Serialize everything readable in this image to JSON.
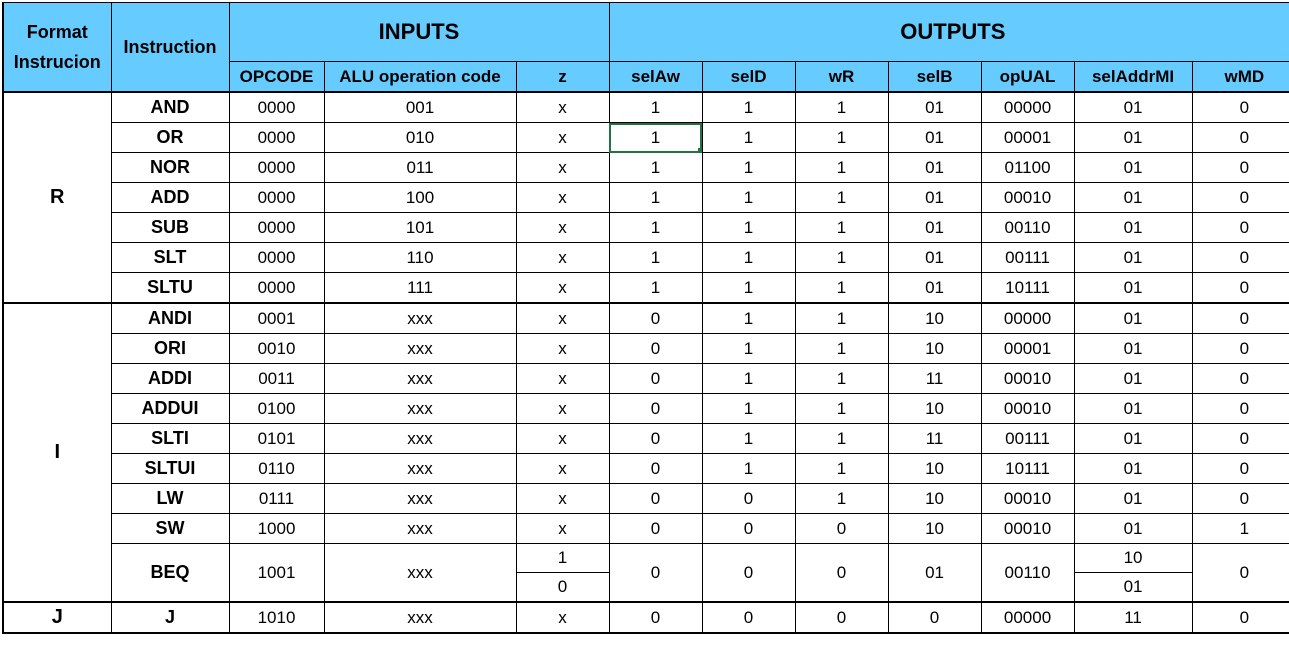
{
  "header": {
    "format_label_line1": "Format",
    "format_label_line2": "Instrucion",
    "instruction_label": "Instruction",
    "inputs_label": "INPUTS",
    "outputs_label": "OUTPUTS",
    "columns": [
      "OPCODE",
      "ALU operation code",
      "z",
      "selAw",
      "selD",
      "wR",
      "selB",
      "opUAL",
      "selAddrMI",
      "wMD"
    ]
  },
  "groups": [
    {
      "format": "R",
      "rows": [
        {
          "instr": "AND",
          "opcode": "0000",
          "alu": "001",
          "z": "x",
          "selAw": "1",
          "selD": "1",
          "wR": "1",
          "selB": "01",
          "opUAL": "00000",
          "selAddrMI": "01",
          "wMD": "0"
        },
        {
          "instr": "OR",
          "opcode": "0000",
          "alu": "010",
          "z": "x",
          "selAw": "1",
          "selD": "1",
          "wR": "1",
          "selB": "01",
          "opUAL": "00001",
          "selAddrMI": "01",
          "wMD": "0"
        },
        {
          "instr": "NOR",
          "opcode": "0000",
          "alu": "011",
          "z": "x",
          "selAw": "1",
          "selD": "1",
          "wR": "1",
          "selB": "01",
          "opUAL": "01100",
          "selAddrMI": "01",
          "wMD": "0"
        },
        {
          "instr": "ADD",
          "opcode": "0000",
          "alu": "100",
          "z": "x",
          "selAw": "1",
          "selD": "1",
          "wR": "1",
          "selB": "01",
          "opUAL": "00010",
          "selAddrMI": "01",
          "wMD": "0"
        },
        {
          "instr": "SUB",
          "opcode": "0000",
          "alu": "101",
          "z": "x",
          "selAw": "1",
          "selD": "1",
          "wR": "1",
          "selB": "01",
          "opUAL": "00110",
          "selAddrMI": "01",
          "wMD": "0"
        },
        {
          "instr": "SLT",
          "opcode": "0000",
          "alu": "110",
          "z": "x",
          "selAw": "1",
          "selD": "1",
          "wR": "1",
          "selB": "01",
          "opUAL": "00111",
          "selAddrMI": "01",
          "wMD": "0"
        },
        {
          "instr": "SLTU",
          "opcode": "0000",
          "alu": "111",
          "z": "x",
          "selAw": "1",
          "selD": "1",
          "wR": "1",
          "selB": "01",
          "opUAL": "10111",
          "selAddrMI": "01",
          "wMD": "0"
        }
      ]
    },
    {
      "format": "I",
      "rows": [
        {
          "instr": "ANDI",
          "opcode": "0001",
          "alu": "xxx",
          "z": "x",
          "selAw": "0",
          "selD": "1",
          "wR": "1",
          "selB": "10",
          "opUAL": "00000",
          "selAddrMI": "01",
          "wMD": "0"
        },
        {
          "instr": "ORI",
          "opcode": "0010",
          "alu": "xxx",
          "z": "x",
          "selAw": "0",
          "selD": "1",
          "wR": "1",
          "selB": "10",
          "opUAL": "00001",
          "selAddrMI": "01",
          "wMD": "0"
        },
        {
          "instr": "ADDI",
          "opcode": "0011",
          "alu": "xxx",
          "z": "x",
          "selAw": "0",
          "selD": "1",
          "wR": "1",
          "selB": "11",
          "opUAL": "00010",
          "selAddrMI": "01",
          "wMD": "0"
        },
        {
          "instr": "ADDUI",
          "opcode": "0100",
          "alu": "xxx",
          "z": "x",
          "selAw": "0",
          "selD": "1",
          "wR": "1",
          "selB": "10",
          "opUAL": "00010",
          "selAddrMI": "01",
          "wMD": "0"
        },
        {
          "instr": "SLTI",
          "opcode": "0101",
          "alu": "xxx",
          "z": "x",
          "selAw": "0",
          "selD": "1",
          "wR": "1",
          "selB": "11",
          "opUAL": "00111",
          "selAddrMI": "01",
          "wMD": "0"
        },
        {
          "instr": "SLTUI",
          "opcode": "0110",
          "alu": "xxx",
          "z": "x",
          "selAw": "0",
          "selD": "1",
          "wR": "1",
          "selB": "10",
          "opUAL": "10111",
          "selAddrMI": "01",
          "wMD": "0"
        },
        {
          "instr": "LW",
          "opcode": "0111",
          "alu": "xxx",
          "z": "x",
          "selAw": "0",
          "selD": "0",
          "wR": "1",
          "selB": "10",
          "opUAL": "00010",
          "selAddrMI": "01",
          "wMD": "0"
        },
        {
          "instr": "SW",
          "opcode": "1000",
          "alu": "xxx",
          "z": "x",
          "selAw": "0",
          "selD": "0",
          "wR": "0",
          "selB": "10",
          "opUAL": "00010",
          "selAddrMI": "01",
          "wMD": "1"
        }
      ]
    },
    {
      "format": "J",
      "rows": [
        {
          "instr": "J",
          "opcode": "1010",
          "alu": "xxx",
          "z": "x",
          "selAw": "0",
          "selD": "0",
          "wR": "0",
          "selB": "0",
          "opUAL": "00000",
          "selAddrMI": "11",
          "wMD": "0"
        }
      ]
    }
  ],
  "beq": {
    "instr": "BEQ",
    "opcode": "1001",
    "alu": "xxx",
    "z": [
      "1",
      "0"
    ],
    "selAw": "0",
    "selD": "0",
    "wR": "0",
    "selB": "01",
    "opUAL": "00110",
    "selAddrMI": [
      "10",
      "01"
    ],
    "wMD": "0"
  }
}
